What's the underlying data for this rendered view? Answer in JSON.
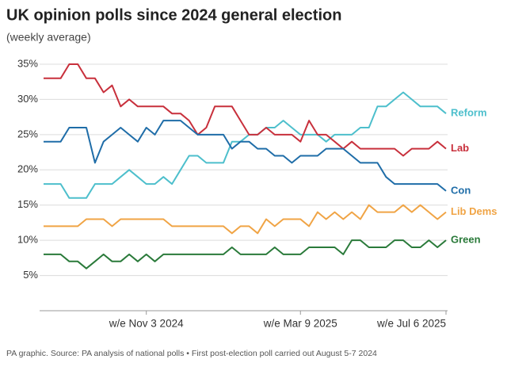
{
  "chart_data": {
    "type": "line",
    "title": "UK opinion polls since 2024 general election",
    "subtitle": "(weekly average)",
    "source": "PA graphic. Source: PA analysis of national polls • First post-election poll carried out August 5-7 2024",
    "categories": [
      null,
      null,
      null,
      null,
      null,
      null,
      null,
      null,
      null,
      null,
      null,
      null,
      "w/e Nov 3 2024",
      null,
      null,
      null,
      null,
      null,
      null,
      null,
      null,
      null,
      null,
      null,
      null,
      null,
      null,
      null,
      null,
      null,
      "w/e Mar 9 2025",
      null,
      null,
      null,
      null,
      null,
      null,
      null,
      null,
      null,
      null,
      null,
      null,
      null,
      null,
      null,
      null,
      "w/e Jul 6 2025"
    ],
    "series": [
      {
        "name": "Reform",
        "color": "#4dbfcc",
        "values": [
          18,
          18,
          18,
          16,
          16,
          16,
          18,
          18,
          18,
          19,
          20,
          19,
          18,
          18,
          19,
          18,
          20,
          22,
          22,
          21,
          21,
          21,
          24,
          24,
          25,
          25,
          26,
          26,
          27,
          26,
          25,
          25,
          25,
          24,
          25,
          25,
          25,
          26,
          26,
          29,
          29,
          30,
          31,
          30,
          29,
          29,
          29,
          28
        ]
      },
      {
        "name": "Lab",
        "color": "#c8303c",
        "values": [
          33,
          33,
          33,
          35,
          35,
          33,
          33,
          31,
          32,
          29,
          30,
          29,
          29,
          29,
          29,
          28,
          28,
          27,
          25,
          26,
          29,
          29,
          29,
          27,
          25,
          25,
          26,
          25,
          25,
          25,
          24,
          27,
          25,
          25,
          24,
          23,
          24,
          23,
          23,
          23,
          23,
          23,
          22,
          23,
          23,
          23,
          24,
          23
        ]
      },
      {
        "name": "Con",
        "color": "#1f6da8",
        "values": [
          24,
          24,
          24,
          26,
          26,
          26,
          21,
          24,
          25,
          26,
          25,
          24,
          26,
          25,
          27,
          27,
          27,
          26,
          25,
          25,
          25,
          25,
          23,
          24,
          24,
          23,
          23,
          22,
          22,
          21,
          22,
          22,
          22,
          23,
          23,
          23,
          22,
          21,
          21,
          21,
          19,
          18,
          18,
          18,
          18,
          18,
          18,
          17
        ]
      },
      {
        "name": "Lib Dems",
        "color": "#f0a445",
        "values": [
          12,
          12,
          12,
          12,
          12,
          13,
          13,
          13,
          12,
          13,
          13,
          13,
          13,
          13,
          13,
          12,
          12,
          12,
          12,
          12,
          12,
          12,
          11,
          12,
          12,
          11,
          13,
          12,
          13,
          13,
          13,
          12,
          14,
          13,
          14,
          13,
          14,
          13,
          15,
          14,
          14,
          14,
          15,
          14,
          15,
          14,
          13,
          14
        ]
      },
      {
        "name": "Green",
        "color": "#2a7a3a",
        "values": [
          8,
          8,
          8,
          7,
          7,
          6,
          7,
          8,
          7,
          7,
          8,
          7,
          8,
          7,
          8,
          8,
          8,
          8,
          8,
          8,
          8,
          8,
          9,
          8,
          8,
          8,
          8,
          9,
          8,
          8,
          8,
          9,
          9,
          9,
          9,
          8,
          10,
          10,
          9,
          9,
          9,
          10,
          10,
          9,
          9,
          10,
          9,
          10
        ]
      }
    ],
    "ylim": [
      0,
      35
    ],
    "yticks": [
      {
        "value": 5,
        "label": "5%"
      },
      {
        "value": 10,
        "label": "10%"
      },
      {
        "value": 15,
        "label": "15%"
      },
      {
        "value": 20,
        "label": "20%"
      },
      {
        "value": 25,
        "label": "25%"
      },
      {
        "value": 30,
        "label": "30%"
      },
      {
        "value": 35,
        "label": "35%"
      }
    ],
    "grid": true
  }
}
